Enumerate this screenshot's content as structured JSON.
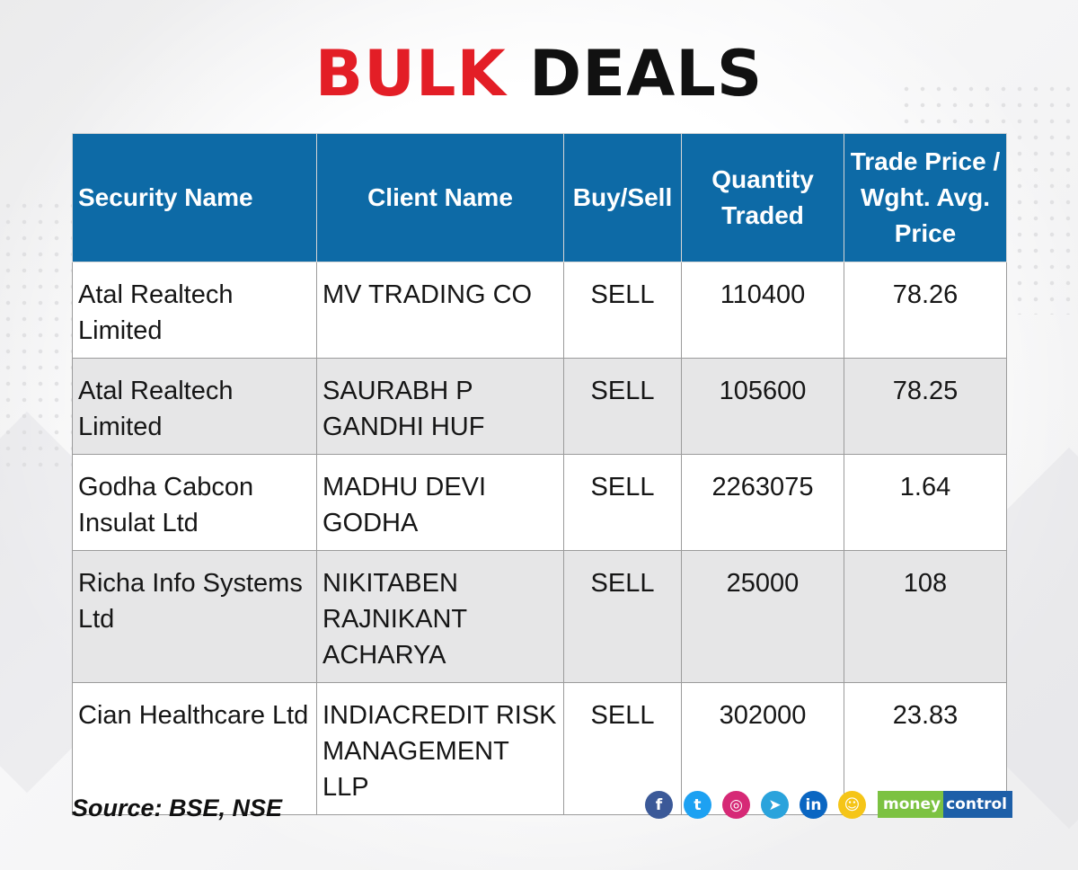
{
  "title": {
    "part1": "BULK",
    "part2": "DEALS"
  },
  "table": {
    "headers": {
      "security": "Security Name",
      "client": "Client Name",
      "buysell": "Buy/Sell",
      "quantity": "Quantity Traded",
      "price": "Trade Price / Wght. Avg. Price"
    },
    "rows": [
      {
        "security": "Atal Realtech Limited",
        "client": "MV TRADING CO",
        "buysell": "SELL",
        "quantity": "110400",
        "price": "78.26"
      },
      {
        "security": "Atal Realtech Limited",
        "client": "SAURABH P GANDHI HUF",
        "buysell": "SELL",
        "quantity": "105600",
        "price": "78.25"
      },
      {
        "security": "Godha Cabcon Insulat Ltd",
        "client": "MADHU DEVI GODHA",
        "buysell": "SELL",
        "quantity": "2263075",
        "price": "1.64"
      },
      {
        "security": "Richa Info Systems Ltd",
        "client": "NIKITABEN RAJNIKANT ACHARYA",
        "buysell": "SELL",
        "quantity": "25000",
        "price": "108"
      },
      {
        "security": "Cian Healthcare Ltd",
        "client": "INDIACREDIT RISK MANAGEMENT LLP",
        "buysell": "SELL",
        "quantity": "302000",
        "price": "23.83"
      }
    ]
  },
  "footer": {
    "source": "Source: BSE, NSE",
    "social_icons": [
      {
        "name": "facebook-icon",
        "glyph": "f",
        "color": "#3b5998"
      },
      {
        "name": "twitter-icon",
        "glyph": "t",
        "color": "#1da1f2"
      },
      {
        "name": "instagram-icon",
        "glyph": "◎",
        "color": "#d62976"
      },
      {
        "name": "telegram-icon",
        "glyph": "➤",
        "color": "#2aa3dc"
      },
      {
        "name": "linkedin-icon",
        "glyph": "in",
        "color": "#0a66c2"
      },
      {
        "name": "koo-icon",
        "glyph": "☺",
        "color": "#f5c518"
      }
    ],
    "brand": {
      "part1": "money",
      "part2": "control"
    }
  },
  "colors": {
    "accent_red": "#e31e26",
    "header_blue": "#0d6aa6",
    "row_alt": "#e6e6e7"
  }
}
